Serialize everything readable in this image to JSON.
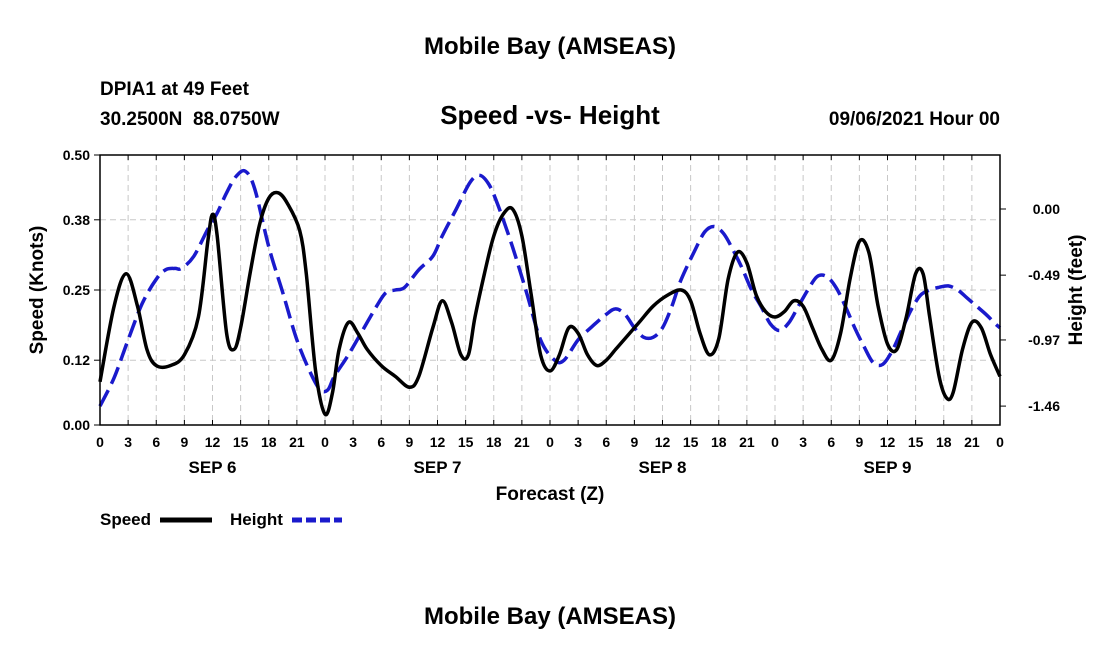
{
  "page": {
    "title_top": "Mobile Bay (AMSEAS)",
    "title_bottom": "Mobile Bay (AMSEAS)",
    "station_line": "DPIA1 at 49 Feet",
    "coords_line": "30.2500N  88.0750W",
    "subtitle": "Speed -vs- Height",
    "datetime": "09/06/2021 Hour 00"
  },
  "colors": {
    "speed": "#000000",
    "height": "#1a1acc",
    "grid": "#c8c8c8"
  },
  "chart_data": {
    "type": "line",
    "title": "Speed -vs- Height",
    "xlabel": "Forecast (Z)",
    "ylabel_left": "Speed (Knots)",
    "ylabel_right": "Height (feet)",
    "x_unit": "hours from 09/06/2021 00Z",
    "xlim": [
      0,
      96
    ],
    "ylim_left": [
      0,
      0.5
    ],
    "ylim_right": [
      -1.6,
      0.4
    ],
    "yticks_left": [
      "0.00",
      "0.12",
      "0.25",
      "0.38",
      "0.50"
    ],
    "yticks_right": [
      "-1.46",
      "-0.97",
      "-0.49",
      "0.00"
    ],
    "xtick_labels": [
      "0",
      "3",
      "6",
      "9",
      "12",
      "15",
      "18",
      "21",
      "0",
      "3",
      "6",
      "9",
      "12",
      "15",
      "18",
      "21",
      "0",
      "3",
      "6",
      "9",
      "12",
      "15",
      "18",
      "21",
      "0",
      "3",
      "6",
      "9",
      "12",
      "15",
      "18",
      "21",
      "0"
    ],
    "day_labels": [
      {
        "label": "SEP 6",
        "hour": 12
      },
      {
        "label": "SEP 7",
        "hour": 36
      },
      {
        "label": "SEP 8",
        "hour": 60
      },
      {
        "label": "SEP 9",
        "hour": 84
      }
    ],
    "grid": true,
    "legend_position": "bottom-left",
    "series": [
      {
        "name": "Speed",
        "axis": "left",
        "style": "solid",
        "color": "#000000",
        "points": [
          [
            0,
            0.08
          ],
          [
            1.5,
            0.22
          ],
          [
            2.8,
            0.28
          ],
          [
            4,
            0.22
          ],
          [
            5,
            0.14
          ],
          [
            6,
            0.11
          ],
          [
            7.5,
            0.11
          ],
          [
            9,
            0.13
          ],
          [
            10.5,
            0.2
          ],
          [
            11.5,
            0.34
          ],
          [
            12,
            0.39
          ],
          [
            12.5,
            0.35
          ],
          [
            13.5,
            0.17
          ],
          [
            14.3,
            0.14
          ],
          [
            15,
            0.18
          ],
          [
            16,
            0.28
          ],
          [
            17,
            0.37
          ],
          [
            18,
            0.42
          ],
          [
            19,
            0.43
          ],
          [
            20,
            0.41
          ],
          [
            21.3,
            0.36
          ],
          [
            22,
            0.28
          ],
          [
            23,
            0.1
          ],
          [
            24,
            0.02
          ],
          [
            24.8,
            0.06
          ],
          [
            25.5,
            0.14
          ],
          [
            26.5,
            0.19
          ],
          [
            27.5,
            0.17
          ],
          [
            28.5,
            0.14
          ],
          [
            30,
            0.11
          ],
          [
            31.5,
            0.09
          ],
          [
            33,
            0.07
          ],
          [
            34,
            0.09
          ],
          [
            35.5,
            0.18
          ],
          [
            36.5,
            0.23
          ],
          [
            37.5,
            0.19
          ],
          [
            38.5,
            0.13
          ],
          [
            39.3,
            0.13
          ],
          [
            40,
            0.2
          ],
          [
            41,
            0.28
          ],
          [
            42,
            0.35
          ],
          [
            43,
            0.39
          ],
          [
            44,
            0.4
          ],
          [
            45,
            0.35
          ],
          [
            46,
            0.24
          ],
          [
            47,
            0.13
          ],
          [
            48,
            0.1
          ],
          [
            49,
            0.13
          ],
          [
            50,
            0.18
          ],
          [
            51,
            0.17
          ],
          [
            52,
            0.13
          ],
          [
            53,
            0.11
          ],
          [
            54,
            0.12
          ],
          [
            55,
            0.14
          ],
          [
            56,
            0.16
          ],
          [
            57.5,
            0.19
          ],
          [
            59,
            0.22
          ],
          [
            60.5,
            0.24
          ],
          [
            62,
            0.25
          ],
          [
            63,
            0.23
          ],
          [
            64,
            0.17
          ],
          [
            65,
            0.13
          ],
          [
            66,
            0.16
          ],
          [
            67,
            0.27
          ],
          [
            68,
            0.32
          ],
          [
            69,
            0.3
          ],
          [
            70,
            0.24
          ],
          [
            71,
            0.21
          ],
          [
            72,
            0.2
          ],
          [
            73,
            0.21
          ],
          [
            74,
            0.23
          ],
          [
            75,
            0.22
          ],
          [
            76,
            0.18
          ],
          [
            77,
            0.14
          ],
          [
            78,
            0.12
          ],
          [
            79,
            0.17
          ],
          [
            80,
            0.27
          ],
          [
            81,
            0.34
          ],
          [
            82,
            0.32
          ],
          [
            83,
            0.22
          ],
          [
            84,
            0.15
          ],
          [
            85,
            0.14
          ],
          [
            86,
            0.2
          ],
          [
            87,
            0.28
          ],
          [
            87.8,
            0.28
          ],
          [
            88.5,
            0.2
          ],
          [
            89.5,
            0.09
          ],
          [
            90.3,
            0.05
          ],
          [
            91,
            0.06
          ],
          [
            92,
            0.14
          ],
          [
            93,
            0.19
          ],
          [
            94,
            0.18
          ],
          [
            95,
            0.13
          ],
          [
            96,
            0.09
          ]
        ]
      },
      {
        "name": "Height",
        "axis": "right",
        "style": "dashed",
        "color": "#1a1acc",
        "points": [
          [
            0,
            -1.46
          ],
          [
            1.5,
            -1.25
          ],
          [
            3,
            -0.97
          ],
          [
            4.5,
            -0.7
          ],
          [
            6,
            -0.52
          ],
          [
            7,
            -0.45
          ],
          [
            8,
            -0.44
          ],
          [
            8.7,
            -0.44
          ],
          [
            10,
            -0.35
          ],
          [
            11.5,
            -0.15
          ],
          [
            12.5,
            -0.03
          ],
          [
            13.5,
            0.12
          ],
          [
            14.5,
            0.24
          ],
          [
            15.5,
            0.28
          ],
          [
            16.5,
            0.15
          ],
          [
            18,
            -0.28
          ],
          [
            19.5,
            -0.62
          ],
          [
            21,
            -0.97
          ],
          [
            22.5,
            -1.22
          ],
          [
            23.5,
            -1.34
          ],
          [
            24.3,
            -1.34
          ],
          [
            25,
            -1.24
          ],
          [
            26.5,
            -1.08
          ],
          [
            28,
            -0.9
          ],
          [
            29.5,
            -0.72
          ],
          [
            30.5,
            -0.62
          ],
          [
            31.5,
            -0.6
          ],
          [
            32.5,
            -0.58
          ],
          [
            34,
            -0.45
          ],
          [
            35.5,
            -0.35
          ],
          [
            36.5,
            -0.2
          ],
          [
            38,
            0.0
          ],
          [
            39.5,
            0.2
          ],
          [
            40.5,
            0.25
          ],
          [
            41.5,
            0.18
          ],
          [
            42.5,
            0.02
          ],
          [
            44,
            -0.28
          ],
          [
            45.5,
            -0.62
          ],
          [
            47,
            -0.97
          ],
          [
            48.5,
            -1.12
          ],
          [
            49.5,
            -1.12
          ],
          [
            51,
            -0.97
          ],
          [
            52.5,
            -0.87
          ],
          [
            54,
            -0.78
          ],
          [
            55,
            -0.74
          ],
          [
            56,
            -0.78
          ],
          [
            57,
            -0.88
          ],
          [
            58,
            -0.95
          ],
          [
            59,
            -0.95
          ],
          [
            60,
            -0.88
          ],
          [
            61,
            -0.72
          ],
          [
            62,
            -0.52
          ],
          [
            63.5,
            -0.3
          ],
          [
            64.5,
            -0.17
          ],
          [
            65.5,
            -0.13
          ],
          [
            66.5,
            -0.18
          ],
          [
            67.5,
            -0.3
          ],
          [
            68.5,
            -0.44
          ],
          [
            69.5,
            -0.6
          ],
          [
            70.5,
            -0.72
          ],
          [
            71.5,
            -0.85
          ],
          [
            72.5,
            -0.9
          ],
          [
            73.5,
            -0.84
          ],
          [
            74.5,
            -0.72
          ],
          [
            75.5,
            -0.6
          ],
          [
            76.5,
            -0.5
          ],
          [
            77.5,
            -0.5
          ],
          [
            78.5,
            -0.58
          ],
          [
            79.5,
            -0.72
          ],
          [
            80.5,
            -0.88
          ],
          [
            81.5,
            -1.02
          ],
          [
            82.5,
            -1.14
          ],
          [
            83.5,
            -1.15
          ],
          [
            84.5,
            -1.05
          ],
          [
            85.5,
            -0.9
          ],
          [
            86.5,
            -0.75
          ],
          [
            87.5,
            -0.64
          ],
          [
            88.5,
            -0.6
          ],
          [
            89.5,
            -0.58
          ],
          [
            90.5,
            -0.57
          ],
          [
            91.5,
            -0.6
          ],
          [
            92.5,
            -0.66
          ],
          [
            93.5,
            -0.72
          ],
          [
            94.5,
            -0.78
          ],
          [
            95.5,
            -0.85
          ],
          [
            96,
            -0.88
          ]
        ]
      }
    ]
  },
  "legend": {
    "items": [
      {
        "label": "Speed",
        "style": "solid",
        "color": "#000000"
      },
      {
        "label": "Height",
        "style": "dashed",
        "color": "#1a1acc"
      }
    ]
  }
}
